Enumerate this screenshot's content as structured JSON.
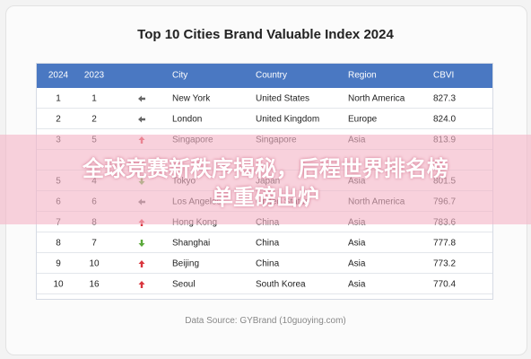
{
  "header": {
    "title": "Top 10 Cities Brand Valuable Index 2024"
  },
  "table": {
    "columns": [
      "2024",
      "2023",
      "City",
      "Country",
      "Region",
      "CBVI"
    ],
    "rows": [
      [
        "1",
        "1",
        "New York",
        "United States",
        "North America",
        "827.3"
      ],
      [
        "2",
        "2",
        "London",
        "United Kingdom",
        "Europe",
        "824.0"
      ],
      [
        "3",
        "5",
        "Singapore",
        "Singapore",
        "Asia",
        "813.9"
      ],
      [
        "5",
        "4",
        "Tokyo",
        "Japan",
        "Asia",
        "801.5"
      ],
      [
        "6",
        "6",
        "Los Angeles",
        "United States",
        "North America",
        "796.7"
      ],
      [
        "7",
        "8",
        "Hong Kong",
        "China",
        "Asia",
        "783.6"
      ],
      [
        "8",
        "7",
        "Shanghai",
        "China",
        "Asia",
        "777.8"
      ],
      [
        "9",
        "10",
        "Beijing",
        "China",
        "Asia",
        "773.2"
      ],
      [
        "10",
        "16",
        "Seoul",
        "South Korea",
        "Asia",
        "770.4"
      ]
    ]
  },
  "source": "Data Source: GYBrand (10guoying.com)",
  "overlay": {
    "lines": [
      "全球竞赛新秩序揭秘，后程世界排名榜",
      "单重磅出炉"
    ]
  }
}
